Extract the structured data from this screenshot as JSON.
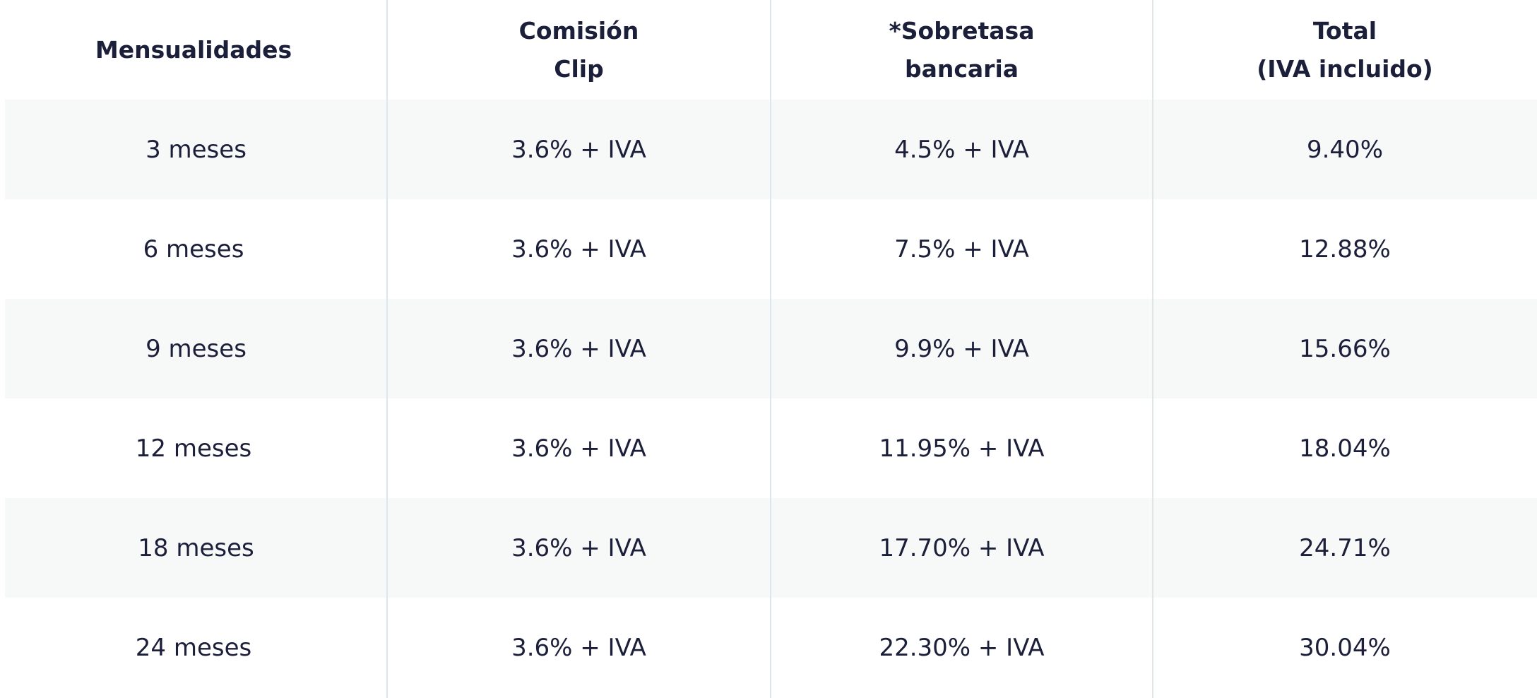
{
  "table": {
    "header": [
      [
        "Mensualidades"
      ],
      [
        "Comisión",
        "Clip"
      ],
      [
        "*Sobretasa",
        "bancaria"
      ],
      [
        "Total",
        "(IVA incluido)"
      ]
    ],
    "rows": [
      [
        "3 meses",
        "3.6% + IVA",
        "4.5% + IVA",
        "9.40%"
      ],
      [
        "6 meses",
        "3.6% + IVA",
        "7.5% + IVA",
        "12.88%"
      ],
      [
        "9 meses",
        "3.6% + IVA",
        "9.9% + IVA",
        "15.66%"
      ],
      [
        "12 meses",
        "3.6% + IVA",
        "11.95% + IVA",
        "18.04%"
      ],
      [
        "18 meses",
        "3.6% + IVA",
        "17.70% + IVA",
        "24.71%"
      ],
      [
        "24 meses",
        "3.6% + IVA",
        "22.30% + IVA",
        "30.04%"
      ]
    ]
  }
}
